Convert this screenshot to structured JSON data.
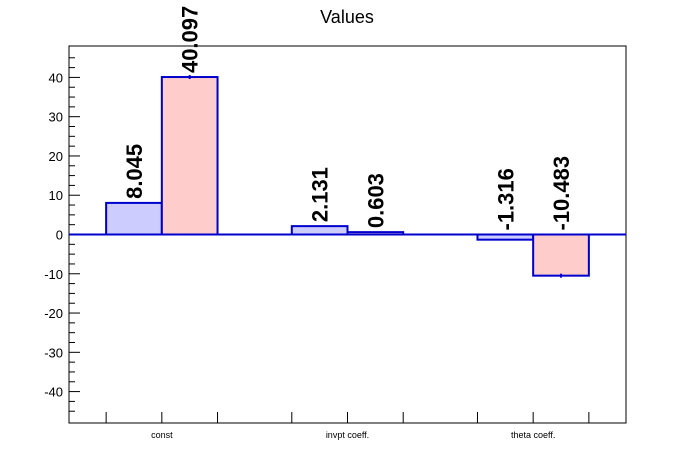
{
  "chart_data": {
    "type": "bar",
    "title": "Values",
    "xlabel": "",
    "ylabel": "",
    "categories": [
      "const",
      "invpt coeff.",
      "theta coeff."
    ],
    "ylim": [
      -48,
      48
    ],
    "yticks": [
      -40,
      -30,
      -20,
      -10,
      0,
      10,
      20,
      30,
      40
    ],
    "grid": false,
    "series": [
      {
        "values": [
          8.045,
          2.131,
          -1.316
        ],
        "labels": [
          "8.045",
          "2.131",
          "-1.316"
        ],
        "fill": "#ccccff",
        "stroke": "#0000cc"
      },
      {
        "values": [
          40.097,
          0.603,
          -10.483
        ],
        "labels": [
          "40.097",
          "0.603",
          "-10.483"
        ],
        "fill": "#ffcccc",
        "stroke": "#0000cc"
      }
    ],
    "error_bars": [
      [
        0,
        0,
        0
      ],
      [
        0.5,
        0,
        0.5
      ]
    ]
  }
}
